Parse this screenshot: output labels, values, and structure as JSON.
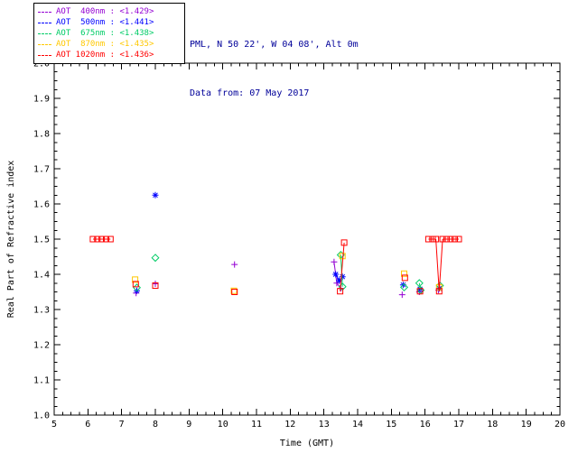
{
  "header": {
    "site": "PML, N 50 22', W 04 08', Alt 0m",
    "date": "Data from: 07 May 2017",
    "color": "#000099"
  },
  "legend": {
    "sep": " : ",
    "entries": [
      {
        "label": "AOT  400nm",
        "value": "<1.429>",
        "color": "#9400d3"
      },
      {
        "label": "AOT  500nm",
        "value": "<1.441>",
        "color": "#0000ff"
      },
      {
        "label": "AOT  675nm",
        "value": "<1.438>",
        "color": "#00cc66"
      },
      {
        "label": "AOT  870nm",
        "value": "<1.435>",
        "color": "#ffc800"
      },
      {
        "label": "AOT 1020nm",
        "value": "<1.436>",
        "color": "#ff0000"
      }
    ]
  },
  "chart_data": {
    "type": "scatter",
    "title": "",
    "xlabel": "Time (GMT)",
    "ylabel": "Real Part of Refractive index",
    "xlim": [
      5,
      20
    ],
    "ylim": [
      1.0,
      2.0
    ],
    "xticks": [
      5,
      6,
      7,
      8,
      9,
      10,
      11,
      12,
      13,
      14,
      15,
      16,
      17,
      18,
      19,
      20
    ],
    "yticks": [
      1.0,
      1.1,
      1.2,
      1.3,
      1.4,
      1.5,
      1.6,
      1.7,
      1.8,
      1.9,
      2.0
    ],
    "grid": false,
    "legend_position": "top-left-outside",
    "line_gap_threshold": 0.2,
    "series": [
      {
        "name": "AOT 400nm",
        "legend_value": "<1.429>",
        "color": "#9400d3",
        "marker": "plus",
        "points": [
          [
            7.43,
            1.347
          ],
          [
            8.0,
            1.373
          ],
          [
            10.35,
            1.428
          ],
          [
            13.3,
            1.435
          ],
          [
            13.38,
            1.375
          ],
          [
            13.5,
            1.36
          ],
          [
            15.32,
            1.342
          ],
          [
            15.83,
            1.35
          ],
          [
            16.4,
            1.355
          ]
        ]
      },
      {
        "name": "AOT 500nm",
        "legend_value": "<1.441>",
        "color": "#0000ff",
        "marker": "asterisk",
        "points": [
          [
            7.45,
            1.353
          ],
          [
            8.0,
            1.625
          ],
          [
            13.35,
            1.4
          ],
          [
            13.45,
            1.382
          ],
          [
            13.55,
            1.393
          ],
          [
            15.35,
            1.37
          ],
          [
            15.85,
            1.358
          ],
          [
            16.42,
            1.36
          ]
        ]
      },
      {
        "name": "AOT 675nm",
        "legend_value": "<1.438>",
        "color": "#00cc66",
        "marker": "diamond",
        "points": [
          [
            7.45,
            1.362
          ],
          [
            8.0,
            1.447
          ],
          [
            13.5,
            1.455
          ],
          [
            13.55,
            1.365
          ],
          [
            15.38,
            1.363
          ],
          [
            15.83,
            1.375
          ],
          [
            15.87,
            1.355
          ],
          [
            16.44,
            1.368
          ]
        ]
      },
      {
        "name": "AOT 870nm",
        "legend_value": "<1.435>",
        "color": "#ffc800",
        "marker": "square",
        "points": [
          [
            7.4,
            1.385
          ],
          [
            10.33,
            1.353
          ],
          [
            13.55,
            1.452
          ],
          [
            15.38,
            1.402
          ],
          [
            16.42,
            1.363
          ]
        ]
      },
      {
        "name": "AOT 1020nm",
        "legend_value": "<1.436>",
        "color": "#ff0000",
        "marker": "square",
        "points": [
          [
            6.15,
            1.5
          ],
          [
            6.28,
            1.5
          ],
          [
            6.41,
            1.5
          ],
          [
            6.54,
            1.5
          ],
          [
            6.67,
            1.5
          ],
          [
            7.42,
            1.372
          ],
          [
            8.0,
            1.368
          ],
          [
            10.35,
            1.35
          ],
          [
            13.48,
            1.352
          ],
          [
            13.6,
            1.49
          ],
          [
            15.4,
            1.39
          ],
          [
            15.85,
            1.352
          ],
          [
            16.1,
            1.5
          ],
          [
            16.22,
            1.5
          ],
          [
            16.32,
            1.5
          ],
          [
            16.42,
            1.352
          ],
          [
            16.52,
            1.5
          ],
          [
            16.64,
            1.5
          ],
          [
            16.76,
            1.5
          ],
          [
            16.88,
            1.5
          ],
          [
            17.0,
            1.5
          ]
        ]
      }
    ]
  }
}
